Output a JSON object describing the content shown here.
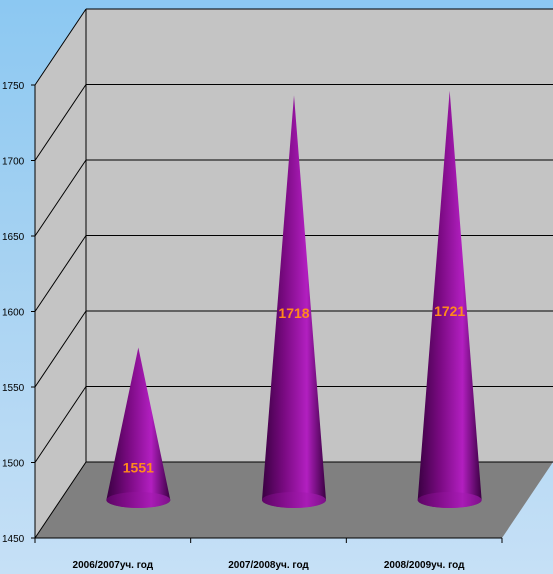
{
  "chart_data": {
    "type": "bar",
    "bar_shape": "cone",
    "categories": [
      "2006/2007уч. год",
      "2007/2008уч. год",
      "2008/2009уч. год"
    ],
    "values": [
      1551,
      1718,
      1721
    ],
    "value_labels": [
      "1551",
      "1718",
      "1721"
    ],
    "ylim": [
      1450,
      1750
    ],
    "yticks": [
      1450,
      1500,
      1550,
      1600,
      1650,
      1700,
      1750
    ],
    "ytick_labels": [
      "1450",
      "1500",
      "1550",
      "1600",
      "1650",
      "1700",
      "1750"
    ],
    "grid": true,
    "legend": "none",
    "colors": {
      "cone": "#7a0a82",
      "cone_highlight": "#b21fc0",
      "cone_shadow": "#3a0042",
      "value_label": "#ff8a1c",
      "wall": "#c4c4c4",
      "floor": "#808080"
    }
  }
}
